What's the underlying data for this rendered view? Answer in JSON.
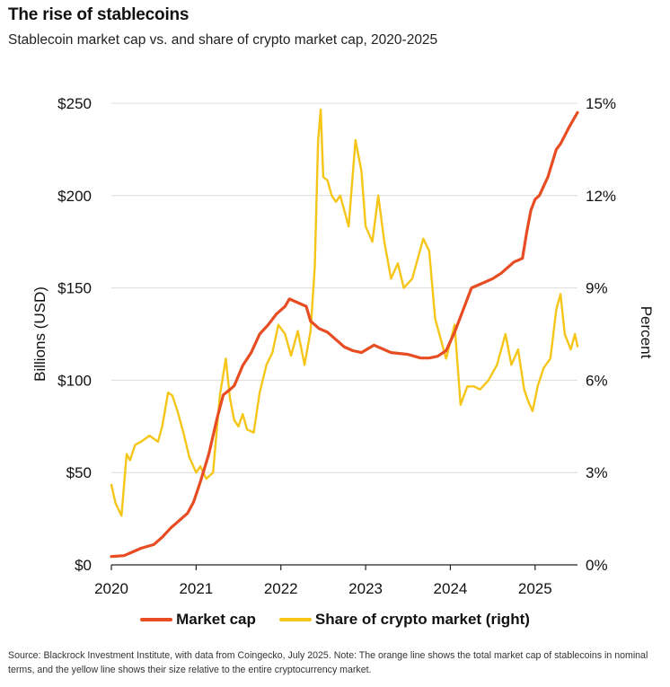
{
  "title": "The rise of stablecoins",
  "subtitle": "Stablecoin market cap vs. and share of crypto market cap, 2020-2025",
  "source": "Source: Blackrock Investment Institute, with data from Coingecko, July 2025. Note: The orange line shows the total market cap of stablecoins in nominal terms, and the yellow line shows their size relative to the entire cryptocurrency market.",
  "colors": {
    "market_cap": "#e84c22",
    "share": "#f5c518",
    "grid": "#dcdcdc",
    "axis": "#222222"
  },
  "legend": {
    "market_cap": "Market cap",
    "share": "Share of crypto market (right)"
  },
  "chart_data": {
    "type": "line",
    "ylabel": "Billions (USD)",
    "y2label": "Percent",
    "xlim": [
      2020,
      2025.5
    ],
    "ylim": [
      0,
      250
    ],
    "y2lim": [
      0,
      15
    ],
    "x_ticks": [
      "2020",
      "2021",
      "2022",
      "2023",
      "2024",
      "2025"
    ],
    "y_ticks": [
      "$0",
      "$50",
      "$100",
      "$150",
      "$200",
      "$250"
    ],
    "y2_ticks": [
      "0%",
      "3%",
      "6%",
      "9%",
      "12%",
      "15%"
    ],
    "series": [
      {
        "name": "Market cap",
        "axis": "left",
        "x": [
          2020.0,
          2020.15,
          2020.25,
          2020.35,
          2020.5,
          2020.6,
          2020.7,
          2020.8,
          2020.9,
          2020.97,
          2021.05,
          2021.15,
          2021.25,
          2021.32,
          2021.4,
          2021.45,
          2021.55,
          2021.65,
          2021.75,
          2021.85,
          2021.95,
          2022.05,
          2022.1,
          2022.2,
          2022.3,
          2022.35,
          2022.45,
          2022.55,
          2022.65,
          2022.75,
          2022.85,
          2022.95,
          2023.1,
          2023.15,
          2023.3,
          2023.5,
          2023.65,
          2023.75,
          2023.85,
          2023.95,
          2024.05,
          2024.15,
          2024.25,
          2024.35,
          2024.5,
          2024.6,
          2024.7,
          2024.75,
          2024.85,
          2024.9,
          2024.95,
          2025.0,
          2025.05,
          2025.15,
          2025.25,
          2025.3,
          2025.4,
          2025.5
        ],
        "values": [
          4.5,
          5,
          7,
          9,
          11,
          15,
          20,
          24,
          28,
          34,
          45,
          60,
          80,
          92,
          95,
          97,
          108,
          115,
          125,
          130,
          136,
          140,
          144,
          142,
          140,
          132,
          128,
          126,
          122,
          118,
          116,
          115,
          119,
          118,
          115,
          114,
          112,
          112,
          113,
          116,
          126,
          138,
          150,
          152,
          155,
          158,
          162,
          164,
          166,
          180,
          192,
          198,
          200,
          210,
          225,
          228,
          237,
          245
        ]
      },
      {
        "name": "Share of crypto market (right)",
        "axis": "right",
        "x": [
          2020.0,
          2020.05,
          2020.12,
          2020.18,
          2020.22,
          2020.28,
          2020.35,
          2020.45,
          2020.55,
          2020.6,
          2020.67,
          2020.72,
          2020.78,
          2020.85,
          2020.92,
          2021.0,
          2021.05,
          2021.12,
          2021.2,
          2021.28,
          2021.35,
          2021.4,
          2021.45,
          2021.5,
          2021.55,
          2021.6,
          2021.68,
          2021.75,
          2021.83,
          2021.9,
          2021.97,
          2022.05,
          2022.12,
          2022.2,
          2022.28,
          2022.35,
          2022.4,
          2022.44,
          2022.47,
          2022.5,
          2022.55,
          2022.6,
          2022.65,
          2022.7,
          2022.8,
          2022.88,
          2022.95,
          2023.0,
          2023.08,
          2023.15,
          2023.22,
          2023.3,
          2023.38,
          2023.45,
          2023.55,
          2023.62,
          2023.68,
          2023.75,
          2023.82,
          2023.9,
          2023.95,
          2024.05,
          2024.12,
          2024.2,
          2024.28,
          2024.35,
          2024.45,
          2024.55,
          2024.65,
          2024.72,
          2024.8,
          2024.87,
          2024.92,
          2024.97,
          2025.03,
          2025.1,
          2025.18,
          2025.25,
          2025.3,
          2025.35,
          2025.42,
          2025.47,
          2025.5
        ],
        "values": [
          2.6,
          2.0,
          1.6,
          3.6,
          3.4,
          3.9,
          4.0,
          4.2,
          4.0,
          4.5,
          5.6,
          5.5,
          5.0,
          4.3,
          3.5,
          3.0,
          3.2,
          2.8,
          3.0,
          5.5,
          6.7,
          5.4,
          4.7,
          4.5,
          4.9,
          4.4,
          4.3,
          5.6,
          6.5,
          6.9,
          7.8,
          7.5,
          6.8,
          7.6,
          6.5,
          7.6,
          9.7,
          13.8,
          14.8,
          12.6,
          12.5,
          12.0,
          11.8,
          12.0,
          11.0,
          13.8,
          12.8,
          11.0,
          10.5,
          12.0,
          10.5,
          9.3,
          9.8,
          9.0,
          9.3,
          10.0,
          10.6,
          10.2,
          8.0,
          7.2,
          6.7,
          7.8,
          5.2,
          5.8,
          5.8,
          5.7,
          6.0,
          6.5,
          7.5,
          6.5,
          7.0,
          5.7,
          5.3,
          5.0,
          5.8,
          6.4,
          6.7,
          8.3,
          8.8,
          7.5,
          7.0,
          7.5,
          7.1
        ]
      }
    ]
  }
}
